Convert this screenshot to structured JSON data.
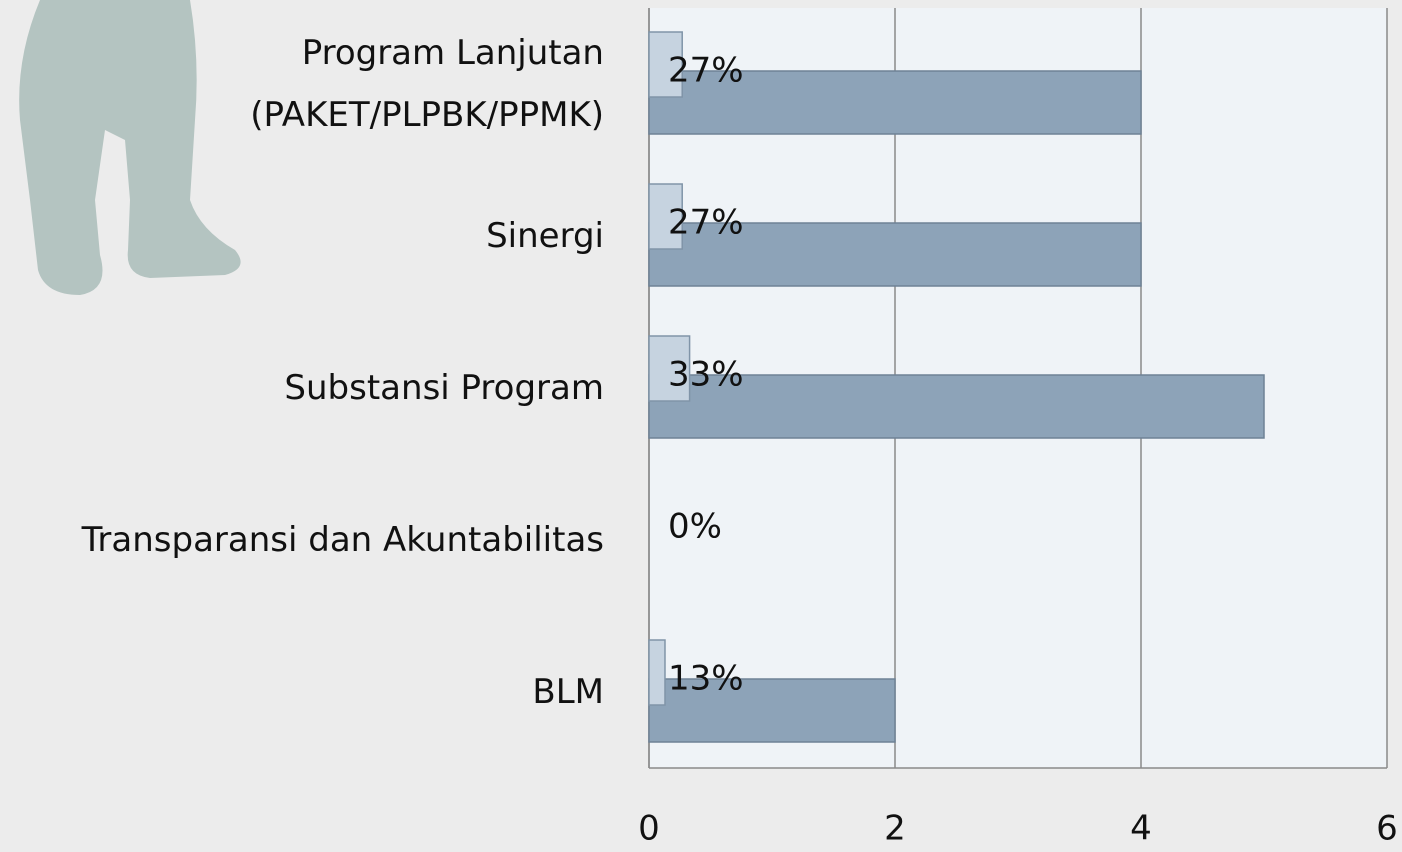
{
  "chart_data": {
    "type": "bar",
    "orientation": "horizontal",
    "categories": [
      "Program Lanjutan\n(PAKET/PLPBK/PPMK)",
      "Sinergi",
      "Substansi Program",
      "Transparansi dan Akuntabilitas",
      "BLM"
    ],
    "series": [
      {
        "color": "#c6d3e0",
        "values": [
          0.27,
          0.27,
          0.33,
          0,
          0.13
        ],
        "value_labels": [
          "27%",
          "27%",
          "33%",
          "0%",
          "13%"
        ]
      },
      {
        "color": "#8da3b8",
        "values": [
          4,
          4,
          5,
          0,
          2
        ]
      }
    ],
    "xlim": [
      0,
      6
    ],
    "xticks": [
      0,
      2,
      4,
      6
    ],
    "grid": true
  }
}
